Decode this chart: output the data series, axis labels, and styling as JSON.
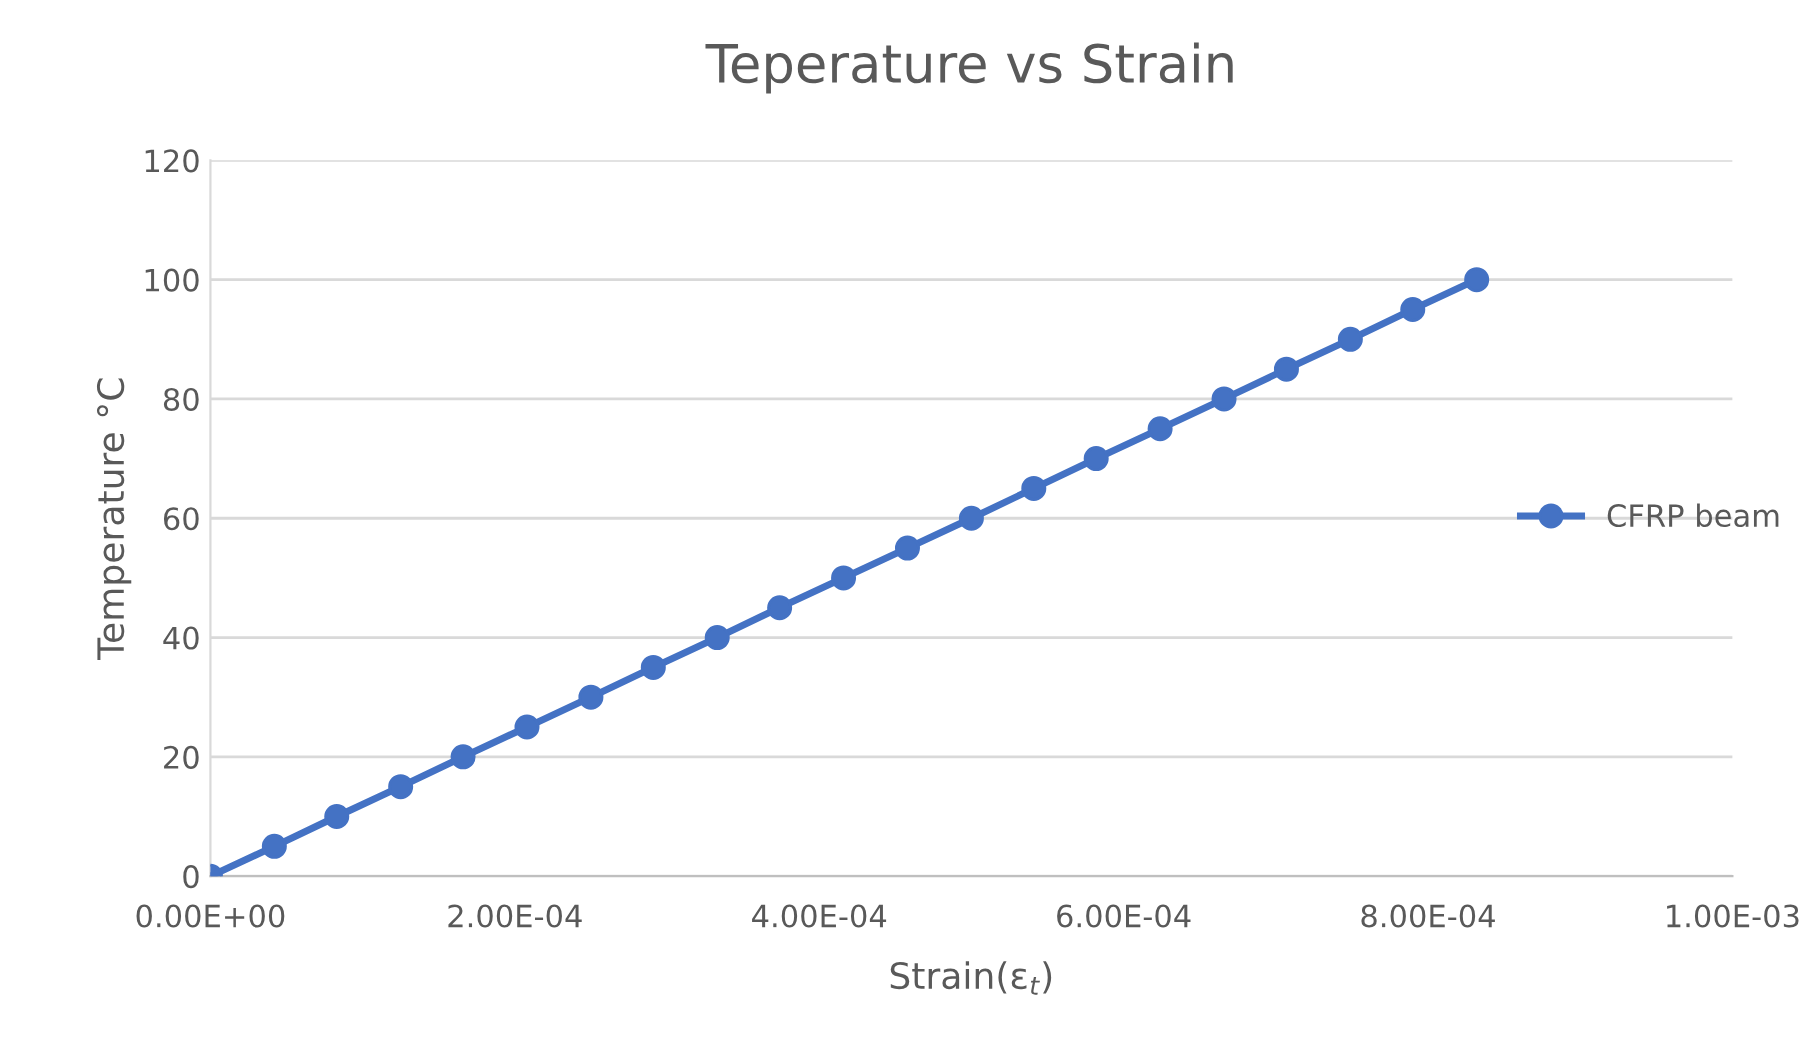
{
  "chart_data": {
    "type": "line",
    "title": "Teperature vs Strain",
    "xlabel": "Strain(ε$_{t}$)",
    "ylabel": "Temperature °C",
    "x": [
      0,
      4.2e-05,
      8.3e-05,
      0.000125,
      0.000166,
      0.000208,
      0.00025,
      0.000291,
      0.000333,
      0.000374,
      0.000416,
      0.000458,
      0.0005,
      0.000541,
      0.000582,
      0.000624,
      0.000666,
      0.000707,
      0.000749,
      0.00079,
      0.000832
    ],
    "series": [
      {
        "name": "CFRP beam",
        "color": "#4472c4",
        "values": [
          0,
          5,
          10,
          15,
          20,
          25,
          30,
          35,
          40,
          45,
          50,
          55,
          60,
          65,
          70,
          75,
          80,
          85,
          90,
          95,
          100
        ]
      }
    ],
    "xlim": [
      0,
      0.001
    ],
    "xticks": [
      {
        "value": 0,
        "label": "0.00E+00"
      },
      {
        "value": 0.0002,
        "label": "2.00E-04"
      },
      {
        "value": 0.0004,
        "label": "4.00E-04"
      },
      {
        "value": 0.0006,
        "label": "6.00E-04"
      },
      {
        "value": 0.0008,
        "label": "8.00E-04"
      },
      {
        "value": 0.001,
        "label": "1.00E-03"
      }
    ],
    "ylim": [
      0,
      120
    ],
    "yticks": [
      0,
      20,
      40,
      60,
      80,
      100,
      120
    ],
    "grid": "y",
    "legend": "right",
    "marker": "circle",
    "line_style": "solid"
  }
}
